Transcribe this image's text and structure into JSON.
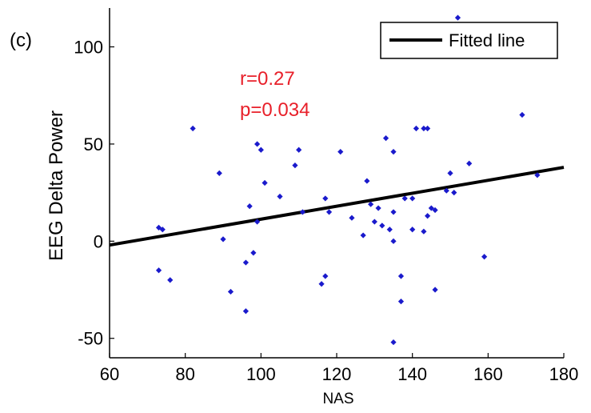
{
  "panel_label": "(c)",
  "chart_data": {
    "type": "scatter",
    "xlabel": "NAS",
    "ylabel": "EEG Delta Power",
    "xlim": [
      60,
      180
    ],
    "ylim": [
      -60,
      120
    ],
    "xticks": [
      60,
      80,
      100,
      120,
      140,
      160,
      180
    ],
    "yticks": [
      -50,
      0,
      50,
      100
    ],
    "grid": false,
    "legend": {
      "position": "top-right",
      "entries": [
        "Fitted line"
      ]
    },
    "annotations": {
      "r": "r=0.27",
      "p": "p=0.034",
      "color": "#e8202a"
    },
    "colors": {
      "points": "#1a1acc",
      "fit_line": "#000000"
    },
    "fitted_line": {
      "x": [
        60,
        180
      ],
      "y": [
        -2,
        38
      ]
    },
    "points": [
      {
        "x": 73,
        "y": 7
      },
      {
        "x": 74,
        "y": 6
      },
      {
        "x": 73,
        "y": -15
      },
      {
        "x": 76,
        "y": -20
      },
      {
        "x": 82,
        "y": 58
      },
      {
        "x": 89,
        "y": 35
      },
      {
        "x": 90,
        "y": 1
      },
      {
        "x": 92,
        "y": -26
      },
      {
        "x": 96,
        "y": -11
      },
      {
        "x": 96,
        "y": -36
      },
      {
        "x": 97,
        "y": 18
      },
      {
        "x": 98,
        "y": -6
      },
      {
        "x": 99,
        "y": 50
      },
      {
        "x": 99,
        "y": 10
      },
      {
        "x": 100,
        "y": 47
      },
      {
        "x": 101,
        "y": 30
      },
      {
        "x": 105,
        "y": 23
      },
      {
        "x": 109,
        "y": 39
      },
      {
        "x": 110,
        "y": 47
      },
      {
        "x": 111,
        "y": 15
      },
      {
        "x": 117,
        "y": -18
      },
      {
        "x": 116,
        "y": -22
      },
      {
        "x": 117,
        "y": 22
      },
      {
        "x": 118,
        "y": 15
      },
      {
        "x": 121,
        "y": 46
      },
      {
        "x": 124,
        "y": 12
      },
      {
        "x": 127,
        "y": 3
      },
      {
        "x": 128,
        "y": 31
      },
      {
        "x": 129,
        "y": 19
      },
      {
        "x": 130,
        "y": 10
      },
      {
        "x": 131,
        "y": 17
      },
      {
        "x": 132,
        "y": 8
      },
      {
        "x": 133,
        "y": 53
      },
      {
        "x": 134,
        "y": 6
      },
      {
        "x": 135,
        "y": 46
      },
      {
        "x": 135,
        "y": 15
      },
      {
        "x": 135,
        "y": 0
      },
      {
        "x": 135,
        "y": -52
      },
      {
        "x": 137,
        "y": -18
      },
      {
        "x": 137,
        "y": -31
      },
      {
        "x": 138,
        "y": 22
      },
      {
        "x": 140,
        "y": 22
      },
      {
        "x": 140,
        "y": 6
      },
      {
        "x": 141,
        "y": 58
      },
      {
        "x": 143,
        "y": 58
      },
      {
        "x": 144,
        "y": 58
      },
      {
        "x": 143,
        "y": 5
      },
      {
        "x": 144,
        "y": 13
      },
      {
        "x": 145,
        "y": 17
      },
      {
        "x": 146,
        "y": 16
      },
      {
        "x": 146,
        "y": -25
      },
      {
        "x": 149,
        "y": 26
      },
      {
        "x": 150,
        "y": 35
      },
      {
        "x": 151,
        "y": 25
      },
      {
        "x": 152,
        "y": 115
      },
      {
        "x": 155,
        "y": 40
      },
      {
        "x": 159,
        "y": -8
      },
      {
        "x": 169,
        "y": 65
      },
      {
        "x": 173,
        "y": 34
      }
    ]
  }
}
